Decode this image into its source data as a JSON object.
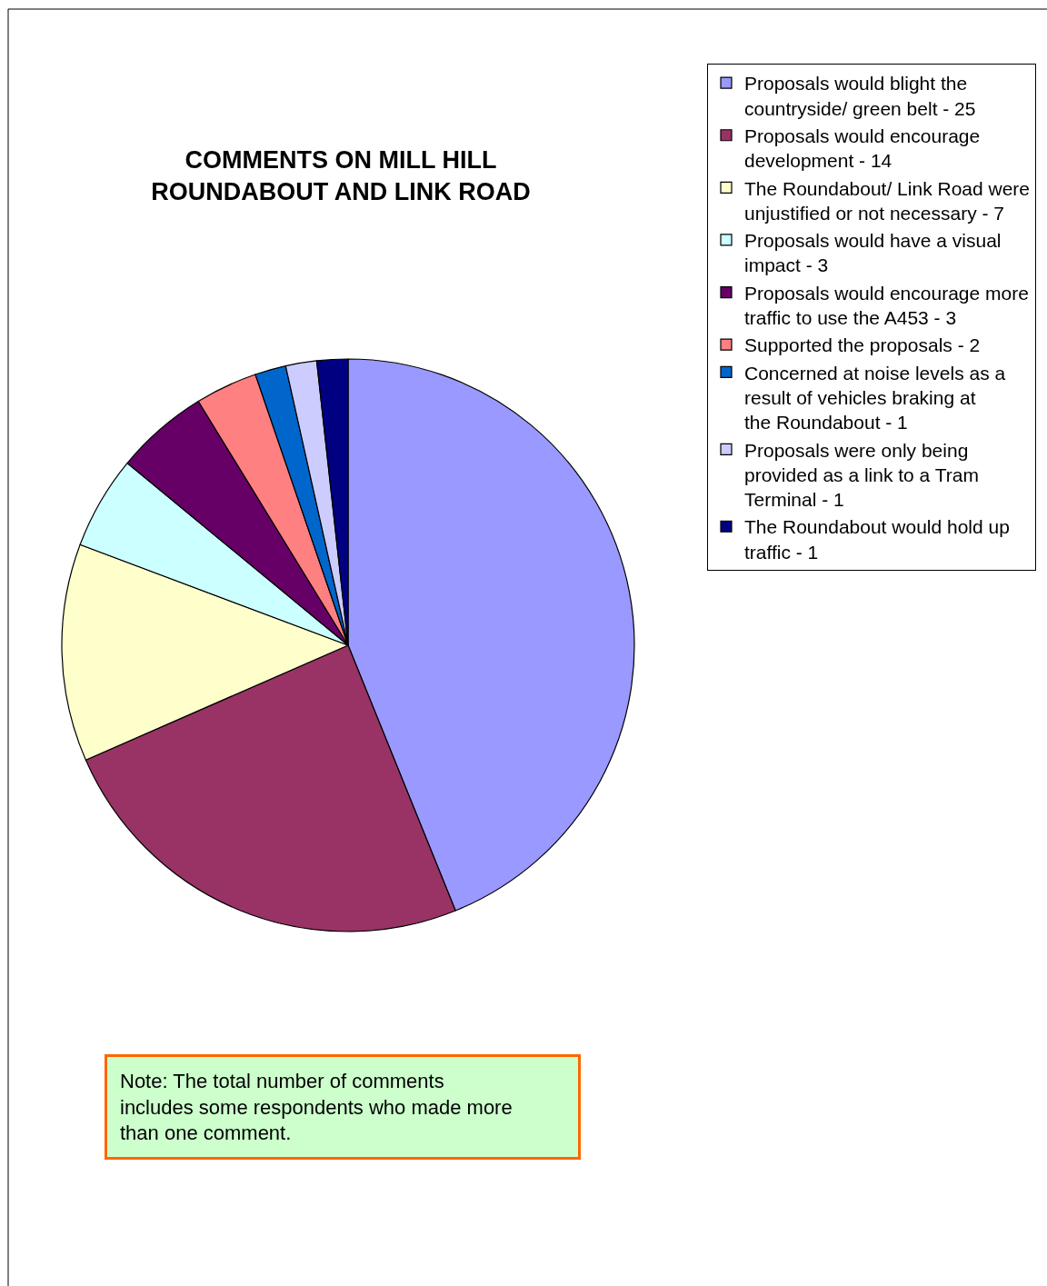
{
  "chart_data": {
    "type": "pie",
    "title": "COMMENTS ON MILL HILL ROUNDABOUT AND LINK ROAD",
    "categories": [
      "Proposals would blight the countryside/ green belt - 25",
      "Proposals would encourage development - 14",
      "The Roundabout/ Link Road were unjustified or not necessary - 7",
      "Proposals would have a visual impact - 3",
      "Proposals would encourage more traffic to use the A453 - 3",
      "Supported the proposals - 2",
      "Concerned at noise levels as a result of vehicles braking at the Roundabout - 1",
      "Proposals were only being provided as a link to a Tram Terminal - 1",
      "The Roundabout would hold up traffic - 1"
    ],
    "values": [
      43.88,
      24.56,
      12.28,
      5.26,
      5.26,
      3.51,
      1.75,
      1.75,
      1.75
    ],
    "colors": [
      "#9999ff",
      "#993366",
      "#ffffcc",
      "#ccffff",
      "#660066",
      "#ff8080",
      "#0066cc",
      "#ccccff",
      "#000080"
    ],
    "legend": "right",
    "annotations": [
      "Note: The total number of comments includes some respondents who made more than one comment."
    ]
  }
}
